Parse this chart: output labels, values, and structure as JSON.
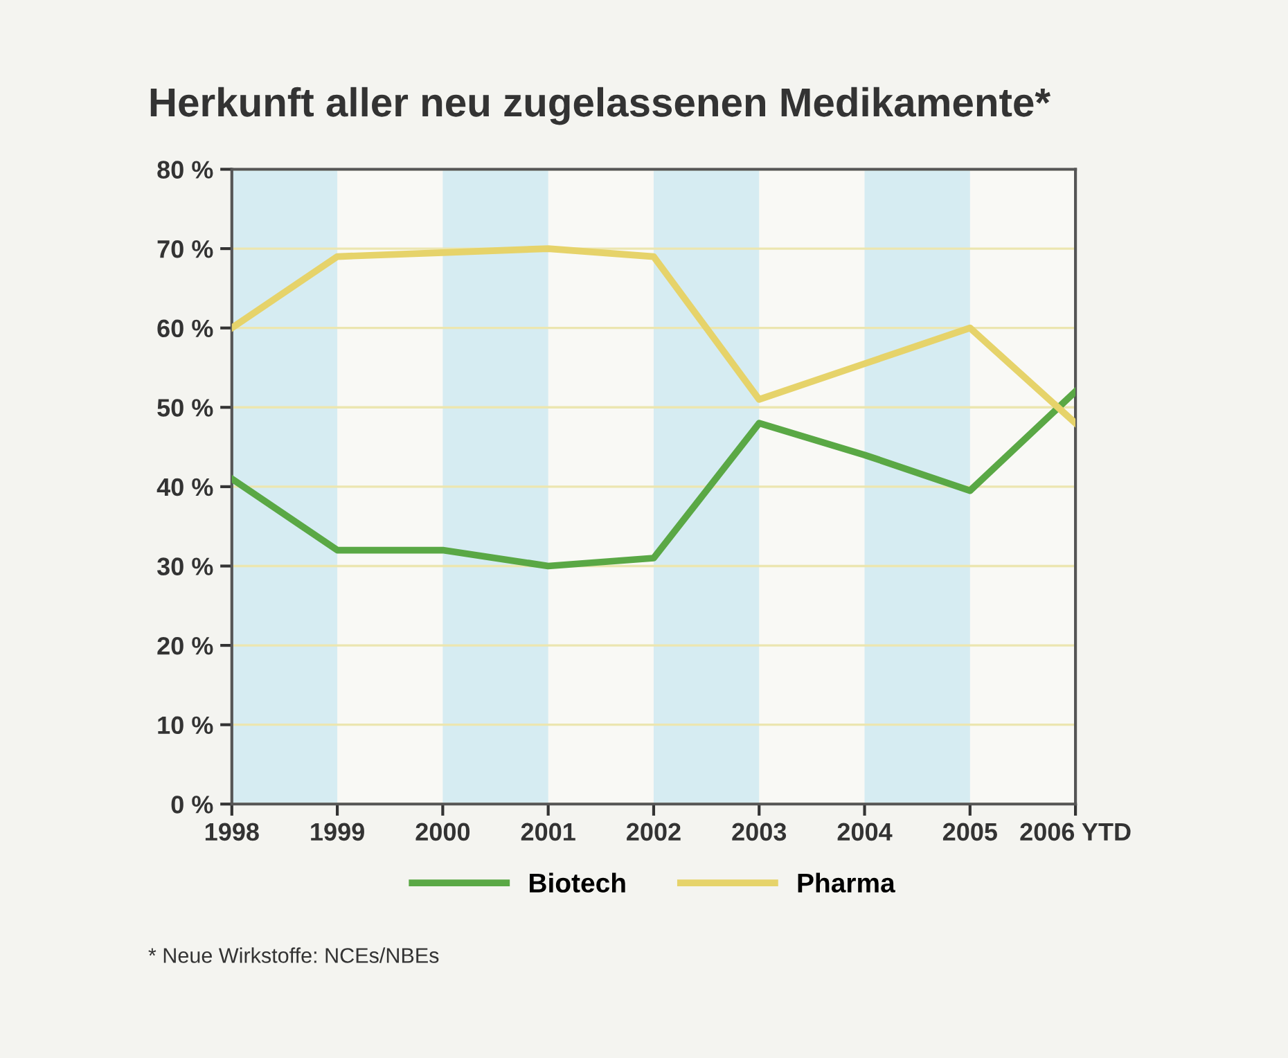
{
  "chart_data": {
    "type": "line",
    "title": "Herkunft aller neu zugelassenen Medikamente*",
    "categories": [
      "1998",
      "1999",
      "2000",
      "2001",
      "2002",
      "2003",
      "2004",
      "2005",
      "2006 YTD"
    ],
    "series": [
      {
        "name": "Biotech",
        "color": "#5aa845",
        "values": [
          41,
          32,
          32,
          30,
          31,
          48,
          44,
          39.5,
          52
        ]
      },
      {
        "name": "Pharma",
        "color": "#e6d36a",
        "values": [
          60,
          69,
          69.5,
          70,
          69,
          51,
          55.5,
          60,
          48
        ]
      }
    ],
    "ylim": [
      0,
      80
    ],
    "yticks": [
      {
        "value": 0,
        "label": "0 %"
      },
      {
        "value": 10,
        "label": "10 %"
      },
      {
        "value": 20,
        "label": "20 %"
      },
      {
        "value": 30,
        "label": "30 %"
      },
      {
        "value": 40,
        "label": "40 %"
      },
      {
        "value": 50,
        "label": "50 %"
      },
      {
        "value": 60,
        "label": "60 %"
      },
      {
        "value": 70,
        "label": "70 %"
      },
      {
        "value": 80,
        "label": "80 %"
      }
    ],
    "bands": [
      {
        "axis": "x",
        "from": "1998",
        "to": "1999",
        "color": "#d6ecf2"
      },
      {
        "axis": "x",
        "from": "2000",
        "to": "2001",
        "color": "#d6ecf2"
      },
      {
        "axis": "x",
        "from": "2002",
        "to": "2003",
        "color": "#d6ecf2"
      },
      {
        "axis": "x",
        "from": "2004",
        "to": "2005",
        "color": "#d6ecf2"
      }
    ],
    "grid": "y",
    "legend": "bottom",
    "marker": "none",
    "line_style": "solid",
    "annotations": [
      "* Neue Wirkstoffe: NCEs/NBEs"
    ]
  }
}
